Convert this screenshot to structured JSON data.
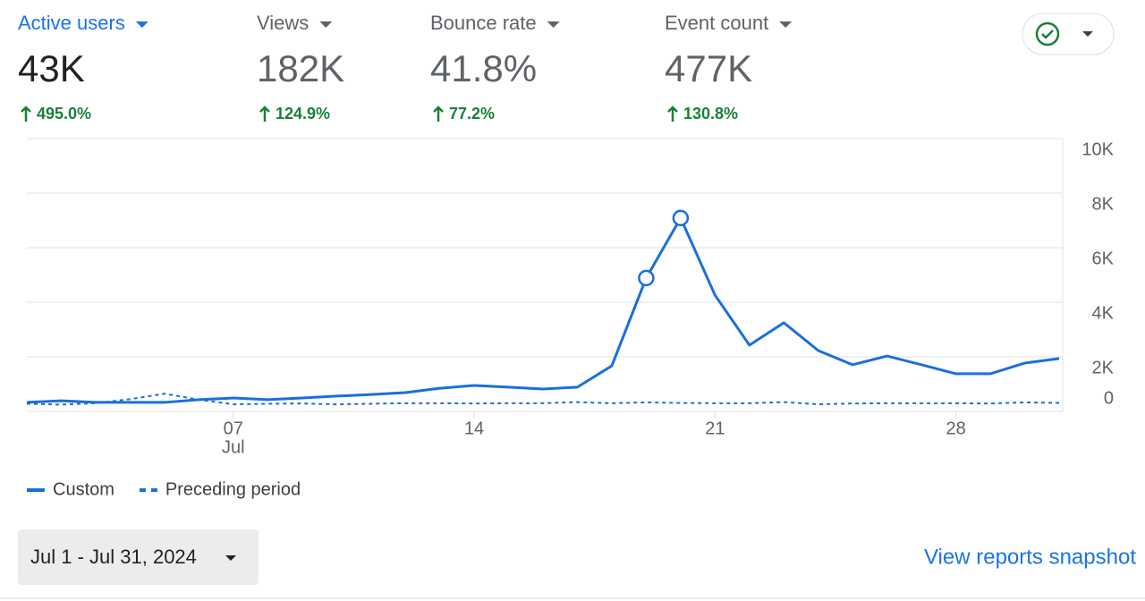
{
  "metrics": [
    {
      "label": "Active users",
      "value": "43K",
      "change": "495.0%"
    },
    {
      "label": "Views",
      "value": "182K",
      "change": "124.9%"
    },
    {
      "label": "Bounce rate",
      "value": "41.8%",
      "change": "77.2%"
    },
    {
      "label": "Event count",
      "value": "477K",
      "change": "130.8%"
    }
  ],
  "chart_data": {
    "type": "line",
    "x": [
      1,
      2,
      3,
      4,
      5,
      6,
      7,
      8,
      9,
      10,
      11,
      12,
      13,
      14,
      15,
      16,
      17,
      18,
      19,
      20,
      21,
      22,
      23,
      24,
      25,
      26,
      27,
      28,
      29,
      30,
      31
    ],
    "series": [
      {
        "name": "Custom",
        "color": "#1a6fdc",
        "style": "solid",
        "values": [
          330,
          390,
          330,
          330,
          330,
          430,
          490,
          430,
          490,
          560,
          620,
          690,
          850,
          950,
          890,
          820,
          890,
          1670,
          4890,
          7090,
          4260,
          2430,
          3250,
          2230,
          1710,
          2030,
          1710,
          1380,
          1380,
          1770,
          1940
        ]
      },
      {
        "name": "Preceding period",
        "color": "#1a6fdc",
        "style": "dashed",
        "values": [
          280,
          250,
          300,
          450,
          650,
          430,
          260,
          280,
          290,
          260,
          280,
          300,
          300,
          290,
          300,
          300,
          340,
          300,
          330,
          310,
          300,
          300,
          340,
          260,
          290,
          300,
          300,
          300,
          290,
          330,
          310
        ]
      }
    ],
    "xlim": [
      1,
      31
    ],
    "xticks": [
      {
        "value": 7,
        "label": "07"
      },
      {
        "value": 14,
        "label": "14"
      },
      {
        "value": 21,
        "label": "21"
      },
      {
        "value": 28,
        "label": "28"
      }
    ],
    "x_month": "Jul",
    "ylim": [
      0,
      10000
    ],
    "yticks": [
      0,
      {
        "value": 2000,
        "label": "2K"
      },
      {
        "value": 4000,
        "label": "4K"
      },
      {
        "value": 6000,
        "label": "6K"
      },
      {
        "value": 8000,
        "label": "8K"
      },
      {
        "value": 10000,
        "label": "10K"
      }
    ],
    "grid": true
  },
  "date_range": "Jul 1 - Jul 31, 2024",
  "link": "View reports snapshot"
}
